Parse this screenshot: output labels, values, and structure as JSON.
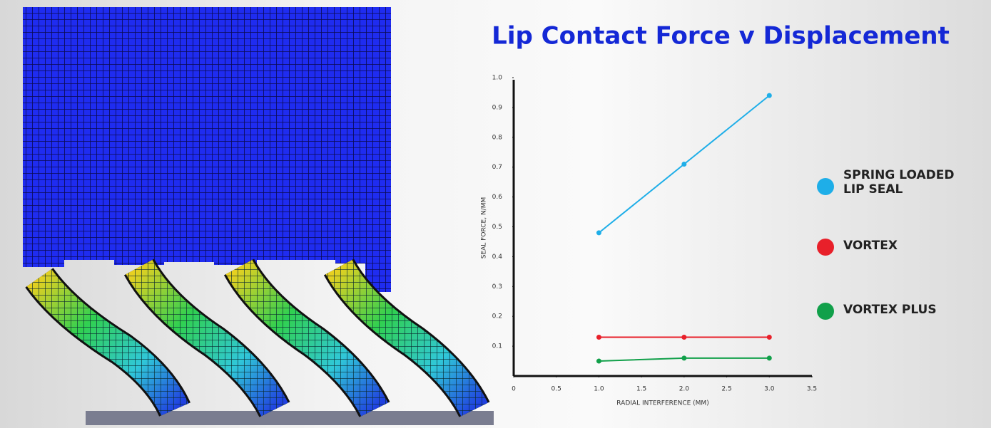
{
  "chart_data": {
    "type": "line",
    "title": "Lip Contact Force v Displacement",
    "x_label": "RADIAL INTERFERENCE (MM)",
    "y_label": "SEAL FORCE, N/MM",
    "x": [
      1,
      2,
      3
    ],
    "series": [
      {
        "name": "SPRING LOADED LIP SEAL",
        "color": "#1eaee8",
        "values": [
          0.48,
          0.71,
          0.94
        ]
      },
      {
        "name": "VORTEX",
        "color": "#e8202a",
        "values": [
          0.13,
          0.13,
          0.13
        ]
      },
      {
        "name": "VORTEX PLUS",
        "color": "#11a04a",
        "values": [
          0.05,
          0.06,
          0.06
        ]
      }
    ],
    "xlim": [
      0,
      3.5
    ],
    "xticks": [
      0,
      0.5,
      {
        "value": 1,
        "label": "1.0"
      },
      1.5,
      {
        "value": 2,
        "label": "2.0"
      },
      2.5,
      {
        "value": 3,
        "label": "3.0"
      },
      3.5
    ],
    "ylim": [
      0,
      1
    ],
    "yticks": [
      0.1,
      0.2,
      0.3,
      0.4,
      0.5,
      0.6,
      0.7,
      0.8,
      0.9,
      {
        "value": 1,
        "label": "1.0"
      }
    ],
    "grid": false,
    "legend": "right"
  }
}
